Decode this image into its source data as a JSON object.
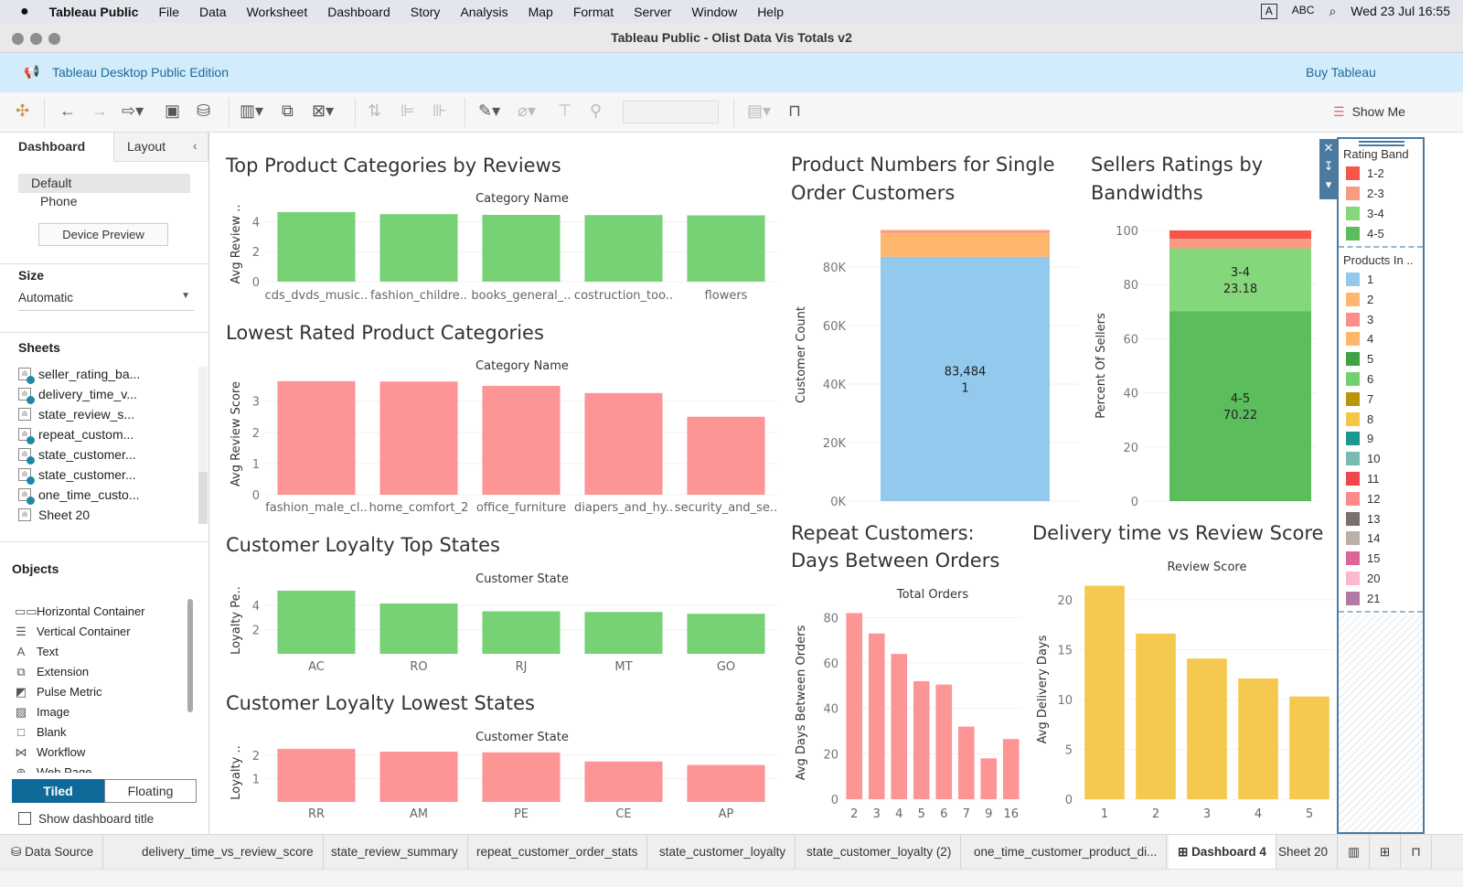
{
  "menubar": {
    "app": "Tableau Public",
    "items": [
      "File",
      "Data",
      "Worksheet",
      "Dashboard",
      "Story",
      "Analysis",
      "Map",
      "Format",
      "Server",
      "Window",
      "Help"
    ],
    "input_source": "A",
    "abc": "ABC",
    "datetime": "Wed 23 Jul  16:55"
  },
  "window": {
    "title": "Tableau Public - Olist Data Vis Totals v2"
  },
  "banner": {
    "edition": "Tableau Desktop Public Edition",
    "buy": "Buy Tableau"
  },
  "toolbar": {
    "show_me": "Show Me"
  },
  "left_panel": {
    "tabs": [
      "Dashboard",
      "Layout"
    ],
    "devices": [
      "Default",
      "Phone"
    ],
    "device_preview": "Device Preview",
    "size_heading": "Size",
    "size_value": "Automatic",
    "sheets_heading": "Sheets",
    "sheets": [
      {
        "name": "seller_rating_ba...",
        "used": true
      },
      {
        "name": "delivery_time_v...",
        "used": true
      },
      {
        "name": "state_review_s...",
        "used": false
      },
      {
        "name": "repeat_custom...",
        "used": true
      },
      {
        "name": "state_customer...",
        "used": true
      },
      {
        "name": "state_customer...",
        "used": true
      },
      {
        "name": "one_time_custo...",
        "used": true
      },
      {
        "name": "Sheet 20",
        "used": false
      }
    ],
    "objects_heading": "Objects",
    "objects": [
      {
        "icon": "horizontal-container-icon",
        "glyph": "▭▭",
        "label": "Horizontal Container"
      },
      {
        "icon": "vertical-container-icon",
        "glyph": "☰",
        "label": "Vertical Container"
      },
      {
        "icon": "text-icon",
        "glyph": "A",
        "label": "Text"
      },
      {
        "icon": "extension-icon",
        "glyph": "⧉",
        "label": "Extension"
      },
      {
        "icon": "pulse-metric-icon",
        "glyph": "◩",
        "label": "Pulse Metric"
      },
      {
        "icon": "image-icon",
        "glyph": "▨",
        "label": "Image"
      },
      {
        "icon": "blank-icon",
        "glyph": "□",
        "label": "Blank"
      },
      {
        "icon": "workflow-icon",
        "glyph": "⋈",
        "label": "Workflow"
      },
      {
        "icon": "web-page-icon",
        "glyph": "⊕",
        "label": "Web Page"
      }
    ],
    "tiled": "Tiled",
    "floating": "Floating",
    "show_title": "Show dashboard title"
  },
  "legend": {
    "rating_title": "Rating Band",
    "rating_items": [
      {
        "label": "1-2",
        "color": "#f8564a"
      },
      {
        "label": "2-3",
        "color": "#fb9a82"
      },
      {
        "label": "3-4",
        "color": "#85d77c"
      },
      {
        "label": "4-5",
        "color": "#5bbd5b"
      }
    ],
    "products_title": "Products In ..",
    "products_items": [
      {
        "label": "1",
        "color": "#93c9ec"
      },
      {
        "label": "2",
        "color": "#ffb770"
      },
      {
        "label": "3",
        "color": "#fd8c8c"
      },
      {
        "label": "4",
        "color": "#ffb56a"
      },
      {
        "label": "5",
        "color": "#3fa244"
      },
      {
        "label": "6",
        "color": "#73d06f"
      },
      {
        "label": "7",
        "color": "#b8950c"
      },
      {
        "label": "8",
        "color": "#f5c645"
      },
      {
        "label": "9",
        "color": "#1e9690"
      },
      {
        "label": "10",
        "color": "#78bbb5"
      },
      {
        "label": "11",
        "color": "#f0474f"
      },
      {
        "label": "12",
        "color": "#fd8b8b"
      },
      {
        "label": "13",
        "color": "#7b6e6c"
      },
      {
        "label": "14",
        "color": "#bcafaa"
      },
      {
        "label": "15",
        "color": "#dd6595"
      },
      {
        "label": "20",
        "color": "#fbb8cf"
      },
      {
        "label": "21",
        "color": "#b37aa6"
      }
    ]
  },
  "tabs": [
    {
      "label": "Data Source",
      "active": false
    },
    {
      "label": "delivery_time_vs_review_score",
      "active": false
    },
    {
      "label": "state_review_summary",
      "active": false
    },
    {
      "label": "repeat_customer_order_stats",
      "active": false
    },
    {
      "label": "state_customer_loyalty",
      "active": false
    },
    {
      "label": "state_customer_loyalty (2)",
      "active": false
    },
    {
      "label": "one_time_customer_product_di...",
      "active": false
    },
    {
      "label": "Dashboard 4",
      "active": true
    },
    {
      "label": "Sheet 20",
      "active": false
    }
  ],
  "chart_data": [
    {
      "type": "bar",
      "title": [
        "Top Product Categories by Reviews"
      ],
      "header": "Category Name",
      "ylabel": "Avg Review ..",
      "categories": [
        "cds_dvds_music..",
        "fashion_childre..",
        "books_general_..",
        "costruction_too..",
        "flowers"
      ],
      "values": [
        4.64,
        4.5,
        4.45,
        4.44,
        4.42
      ],
      "ylim": [
        0,
        5
      ],
      "yticks": [
        0,
        2,
        4
      ],
      "color": "#76d275",
      "grid": true
    },
    {
      "type": "bar",
      "title": [
        "Lowest Rated Product Categories"
      ],
      "header": "Category Name",
      "ylabel": "Avg Review Score",
      "categories": [
        "fashion_male_cl..",
        "home_comfort_2",
        "office_furniture",
        "diapers_and_hy..",
        "security_and_se.."
      ],
      "values": [
        3.64,
        3.63,
        3.49,
        3.26,
        2.5
      ],
      "ylim": [
        0,
        3.9
      ],
      "yticks": [
        0,
        1,
        2,
        3
      ],
      "color": "#fd9595",
      "grid": true
    },
    {
      "type": "bar",
      "title": [
        "Customer Loyalty Top States"
      ],
      "header": "Customer State",
      "ylabel": "Loyalty Pe..",
      "categories": [
        "AC",
        "RO",
        "RJ",
        "MT",
        "GO"
      ],
      "values": [
        5.2,
        4.15,
        3.5,
        3.45,
        3.3
      ],
      "ylim": [
        0,
        5.5
      ],
      "yticks": [
        2,
        4
      ],
      "color": "#76d275",
      "grid": true
    },
    {
      "type": "bar",
      "title": [
        "Customer Loyalty Lowest States"
      ],
      "header": "Customer State",
      "ylabel": "Loyalty ..",
      "categories": [
        "RR",
        "AM",
        "PE",
        "CE",
        "AP"
      ],
      "values": [
        2.27,
        2.15,
        2.12,
        1.73,
        1.58
      ],
      "ylim": [
        0,
        2.5
      ],
      "yticks": [
        1,
        2
      ],
      "color": "#fd9595",
      "grid": true
    },
    {
      "type": "bar",
      "stacked": true,
      "title": [
        "Product Numbers for Single",
        "Order Customers"
      ],
      "ylabel": "Customer Count",
      "ylim": [
        0,
        100000
      ],
      "yticks": [
        0,
        20000,
        40000,
        60000,
        80000
      ],
      "ytick_labels": [
        "0K",
        "20K",
        "40K",
        "60K",
        "80K"
      ],
      "segments": [
        {
          "name": "1",
          "value": 83484,
          "color": "#93c9ec",
          "label": [
            "83,484",
            "1"
          ]
        },
        {
          "name": "2",
          "value": 8200,
          "color": "#ffb770"
        },
        {
          "name": "3",
          "value": 700,
          "color": "#fd8c8c"
        },
        {
          "name": "4",
          "value": 300,
          "color": "#ffb56a"
        }
      ],
      "grid": true
    },
    {
      "type": "bar",
      "stacked": true,
      "title": [
        "Sellers Ratings by",
        "Bandwidths"
      ],
      "ylabel": "Percent Of Sellers",
      "ylim": [
        0,
        100
      ],
      "yticks": [
        0,
        20,
        40,
        60,
        80,
        100
      ],
      "segments": [
        {
          "name": "4-5",
          "value": 70.22,
          "color": "#5bbd5b",
          "label": [
            "4-5",
            "70.22"
          ]
        },
        {
          "name": "3-4",
          "value": 23.18,
          "color": "#85d77c",
          "label": [
            "3-4",
            "23.18"
          ]
        },
        {
          "name": "2-3",
          "value": 3.5,
          "color": "#fb9a82"
        },
        {
          "name": "1-2",
          "value": 3.1,
          "color": "#f8564a"
        }
      ],
      "grid": true
    },
    {
      "type": "bar",
      "title": [
        "Repeat Customers:",
        "Days Between Orders"
      ],
      "header": "Total Orders",
      "ylabel": "Avg Days Between Orders",
      "categories": [
        "2",
        "3",
        "4",
        "5",
        "6",
        "7",
        "9",
        "16"
      ],
      "values": [
        82,
        73,
        64,
        52,
        50.5,
        32,
        18,
        26.5
      ],
      "ylim": [
        0,
        85
      ],
      "yticks": [
        0,
        20,
        40,
        60,
        80
      ],
      "color": "#fd9595",
      "grid": true
    },
    {
      "type": "bar",
      "title": [
        "Delivery time vs Review Score"
      ],
      "header": "Review Score",
      "ylabel": "Avg Delivery Days",
      "categories": [
        "1",
        "2",
        "3",
        "4",
        "5"
      ],
      "values": [
        21.4,
        16.6,
        14.1,
        12.1,
        10.3
      ],
      "ylim": [
        0,
        22
      ],
      "yticks": [
        0,
        5,
        10,
        15,
        20
      ],
      "color": "#f5c94f",
      "grid": true
    }
  ]
}
